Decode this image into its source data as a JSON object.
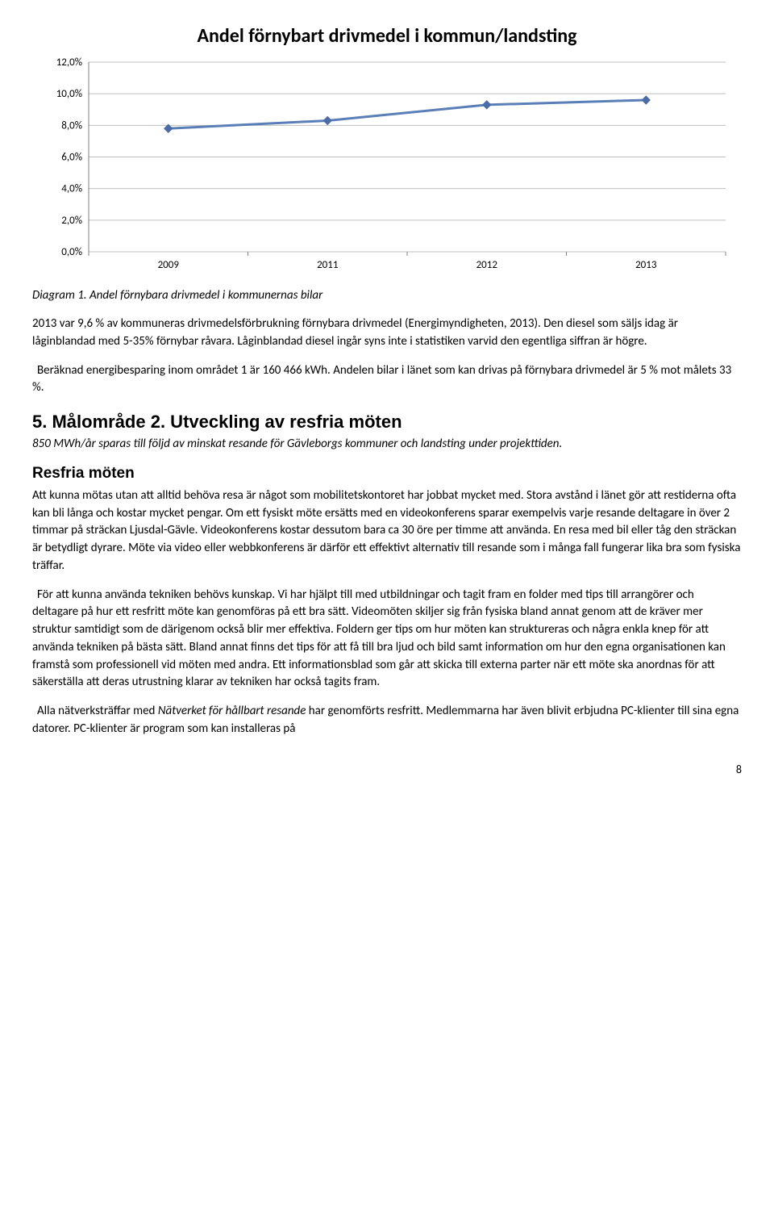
{
  "chart": {
    "type": "line",
    "title": "Andel förnybart drivmedel i kommun/landsting",
    "y_ticks": [
      "12,0%",
      "10,0%",
      "8,0%",
      "6,0%",
      "4,0%",
      "2,0%",
      "0,0%"
    ],
    "x_labels": [
      "2009",
      "2011",
      "2012",
      "2013"
    ],
    "values": [
      7.8,
      8.3,
      9.3,
      9.6
    ],
    "ylim": [
      0,
      12
    ],
    "line_color": "#5a7fb8",
    "marker_color": "#4a6ca8",
    "gridline_color": "#bfbfbf",
    "axis_color": "#808080",
    "background": "#ffffff",
    "title_fontsize": 24,
    "tick_fontsize": 13,
    "line_width": 3,
    "marker_size": 5
  },
  "caption": "Diagram 1. Andel förnybara drivmedel i kommunernas bilar",
  "para1": "2013 var 9,6 % av kommuneras drivmedelsförbrukning förnybara drivmedel (Energimyndigheten, 2013). Den diesel som säljs idag är låginblandad med 5-35% förnybar råvara. Låginblandad diesel ingår syns inte i statistiken varvid den egentliga siffran är högre.",
  "para2_a": "Beräknad energibesparing inom området 1 är 160 466 kWh. Andelen bilar i länet som kan drivas på förnybara drivmedel är 5 % mot målets 33 %.",
  "section_heading": "5. Målområde 2. Utveckling av resfria möten",
  "section_sub": "850 MWh/år sparas till följd av minskat resande för Gävleborgs kommuner och landsting under projekttiden.",
  "subhead": "Resfria möten",
  "para3": "Att kunna mötas utan att alltid behöva resa är något som mobilitetskontoret har jobbat mycket med. Stora avstånd i länet gör att restiderna ofta kan bli långa och kostar mycket pengar. Om ett fysiskt möte ersätts med en videokonferens sparar exempelvis varje resande deltagare in över 2 timmar på sträckan Ljusdal-Gävle. Videokonferens kostar dessutom bara ca 30 öre per timme att använda. En resa med bil eller tåg den sträckan är betydligt dyrare. Möte via video eller webbkonferens är därför ett effektivt alternativ till resande som i många fall fungerar lika bra som fysiska träffar.",
  "para4": "För att kunna använda tekniken behövs kunskap. Vi har hjälpt till med utbildningar och tagit fram en folder med tips till arrangörer och deltagare på hur ett resfritt möte kan genomföras på ett bra sätt. Videomöten skiljer sig från fysiska bland annat genom att de kräver mer struktur samtidigt som de därigenom också blir mer effektiva. Foldern ger tips om hur möten kan struktureras och några enkla knep för att använda tekniken på bästa sätt. Bland annat finns det tips för att få till bra ljud och bild samt information om hur den egna organisationen kan framstå som professionell vid möten med andra. Ett informationsblad som går att skicka till externa parter när ett möte ska anordnas för att säkerställa att deras utrustning klarar av tekniken har också tagits fram.",
  "para5_a": "Alla nätverksträffar med ",
  "para5_italic": "Nätverket för hållbart resande",
  "para5_b": " har genomförts resfritt. Medlemmarna har även blivit erbjudna PC-klienter till sina egna datorer. PC-klienter är program som kan installeras på",
  "page_number": "8"
}
